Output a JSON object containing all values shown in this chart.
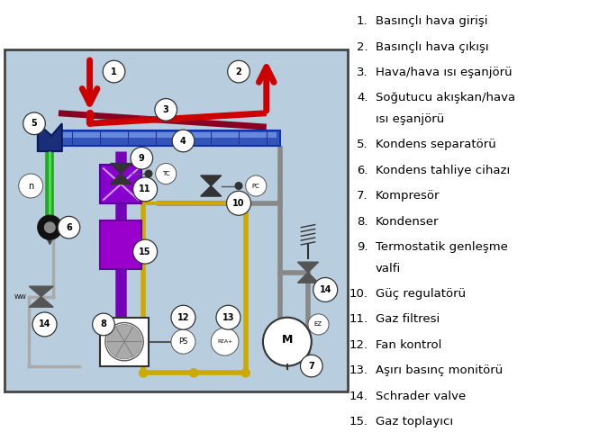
{
  "bg_color": "#b8cede",
  "border_color": "#444444",
  "colors": {
    "red_flow": "#cc0000",
    "dark_red": "#880022",
    "blue_exchanger": "#2244aa",
    "dark_blue_sep": "#1a2e7a",
    "green_pipe": "#22aa22",
    "purple_pipe": "#7700bb",
    "purple_dark": "#550088",
    "gray_pipe": "#888888",
    "gray_dark": "#666666",
    "yellow_circuit": "#ccaa00",
    "black": "#111111",
    "white": "#ffffff",
    "light_gray": "#aaaaaa"
  },
  "legend_items": [
    [
      "1.",
      "Basınçlı hava girişi"
    ],
    [
      "2.",
      "Basınçlı hava çıkışı"
    ],
    [
      "3.",
      "Hava/hava ısı eşanjörü"
    ],
    [
      "4.",
      "Soğutucu akışkan/hava\nısı eşanjörü"
    ],
    [
      "5.",
      "Kondens separatörü"
    ],
    [
      "6.",
      "Kondens tahliye cihazı"
    ],
    [
      "7.",
      "Kompresör"
    ],
    [
      "8.",
      "Kondenser"
    ],
    [
      "9.",
      "Termostatik genleşme\nvalfi"
    ],
    [
      "10.",
      "Güç regulatörü"
    ],
    [
      "11.",
      "Gaz filtresi"
    ],
    [
      "12.",
      "Fan kontrol"
    ],
    [
      "13.",
      "Aşırı basınç monitörü"
    ],
    [
      "14.",
      "Schrader valve"
    ],
    [
      "15.",
      "Gaz toplayıcı"
    ]
  ],
  "font_size": 9.5
}
